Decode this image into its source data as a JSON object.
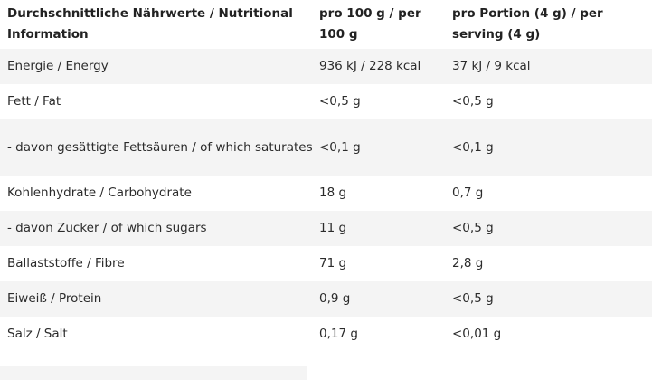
{
  "headers": {
    "col1": "Durchschnittliche Nährwerte / Nutritional Information",
    "col2": "pro 100 g / per 100 g",
    "col3": "pro Portion (4 g) / per serving (4 g)"
  },
  "rows": [
    {
      "label": "Energie / Energy",
      "per100": "936 kJ / 228 kcal",
      "perPortion": "37 kJ / 9 kcal"
    },
    {
      "label": "Fett / Fat",
      "per100": "<0,5 g",
      "perPortion": "<0,5 g"
    },
    {
      "label": "- davon gesättigte Fettsäuren / of which saturates",
      "per100": "<0,1 g",
      "perPortion": "<0,1 g"
    },
    {
      "label": "Kohlenhydrate / Carbohydrate",
      "per100": "18 g",
      "perPortion": "0,7 g"
    },
    {
      "label": "- davon Zucker / of which sugars",
      "per100": "11 g",
      "perPortion": "<0,5 g"
    },
    {
      "label": "Ballaststoffe / Fibre",
      "per100": "71 g",
      "perPortion": "2,8 g"
    },
    {
      "label": "Eiweiß / Protein",
      "per100": "0,9 g",
      "perPortion": "<0,5 g"
    },
    {
      "label": "Salz / Salt",
      "per100": "0,17 g",
      "perPortion": "<0,01 g"
    }
  ],
  "colors": {
    "header_bg": "#ffffff",
    "shade": "#f4f4f4",
    "text": "#2b2b2b"
  }
}
